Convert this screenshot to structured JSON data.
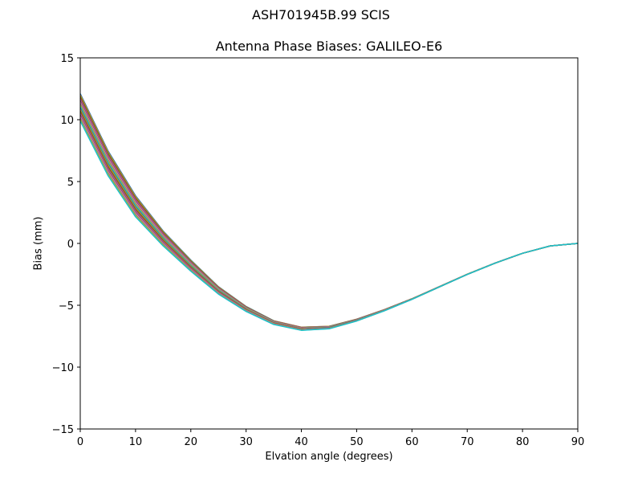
{
  "figure": {
    "suptitle": "ASH701945B.99   SCIS",
    "title": "Antenna Phase Biases: GALILEO-E6",
    "xlabel": "Elvation angle (degrees)",
    "ylabel": "Bias (mm)"
  },
  "chart_data": {
    "type": "line",
    "title": "Antenna Phase Biases: GALILEO-E6",
    "suptitle": "ASH701945B.99   SCIS",
    "xlabel": "Elvation angle (degrees)",
    "ylabel": "Bias (mm)",
    "xlim": [
      0,
      90
    ],
    "ylim": [
      -15,
      15
    ],
    "xticks": [
      0,
      10,
      20,
      30,
      40,
      50,
      60,
      70,
      80,
      90
    ],
    "yticks": [
      -15,
      -10,
      -5,
      0,
      5,
      10,
      15
    ],
    "grid": false,
    "legend": null,
    "x": [
      0,
      5,
      10,
      15,
      20,
      25,
      30,
      35,
      40,
      45,
      50,
      55,
      60,
      65,
      70,
      75,
      80,
      85,
      90
    ],
    "mean_values": [
      11.0,
      6.5,
      3.0,
      0.4,
      -1.8,
      -3.8,
      -5.3,
      -6.4,
      -6.9,
      -6.8,
      -6.2,
      -5.4,
      -4.5,
      -3.5,
      -2.5,
      -1.6,
      -0.8,
      -0.2,
      0.0
    ],
    "spread_at_x": [
      2.2,
      2.0,
      1.7,
      1.2,
      0.9,
      0.6,
      0.4,
      0.3,
      0.25,
      0.2,
      0.15,
      0.1,
      0.05,
      0.03,
      0.02,
      0.01,
      0.0,
      0.0,
      0.0
    ],
    "n_series": 20,
    "series_range_at_0deg": [
      9.8,
      12.0
    ],
    "series_colors": [
      "#1f77b4",
      "#ff7f0e",
      "#2ca02c",
      "#d62728",
      "#9467bd",
      "#8c564b",
      "#e377c2",
      "#7f7f7f",
      "#bcbd22",
      "#17becf"
    ],
    "note": "Multiple series (one per azimuth) that diverge near low elevation and converge to 0 at 90 degrees."
  }
}
